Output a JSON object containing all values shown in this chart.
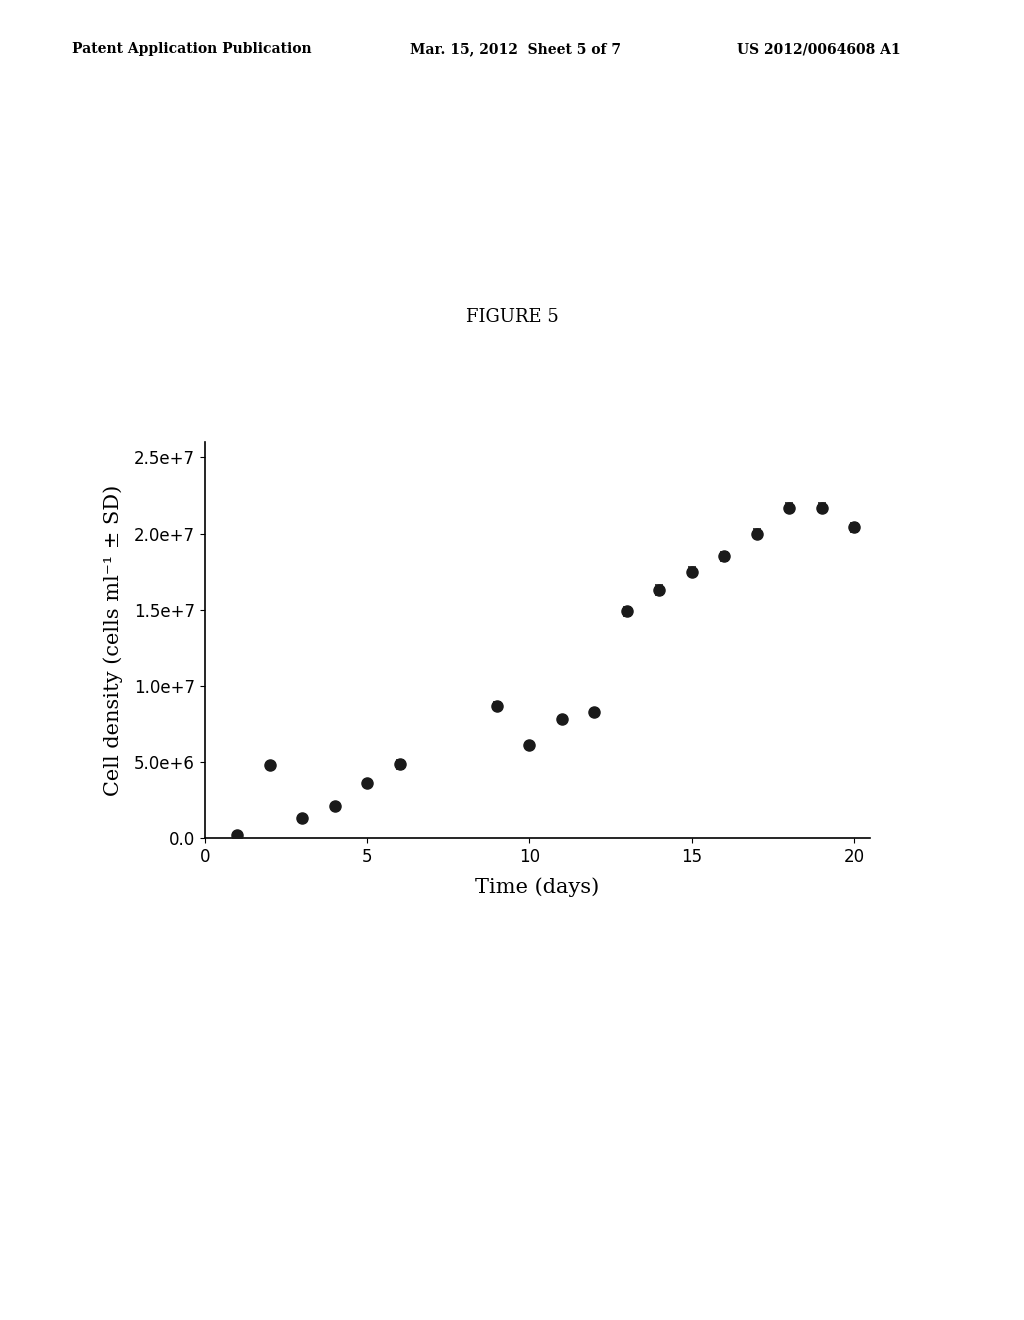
{
  "title": "FIGURE 5",
  "xlabel": "Time (days)",
  "ylabel": "Cell density (cells ml⁻¹ ± SD)",
  "header_left": "Patent Application Publication",
  "header_mid": "Mar. 15, 2012  Sheet 5 of 7",
  "header_right": "US 2012/0064608 A1",
  "x": [
    1,
    2,
    3,
    4,
    5,
    6,
    9,
    10,
    11,
    12,
    13,
    14,
    15,
    16,
    17,
    18,
    19,
    20
  ],
  "y": [
    200000.0,
    4800000.0,
    1300000.0,
    2100000.0,
    3600000.0,
    4850000.0,
    8700000.0,
    6100000.0,
    7800000.0,
    8300000.0,
    14900000.0,
    16300000.0,
    17500000.0,
    18500000.0,
    20000000.0,
    21700000.0,
    21700000.0,
    20400000.0
  ],
  "yerr": [
    100000.0,
    200000.0,
    100000.0,
    150000.0,
    200000.0,
    300000.0,
    250000.0,
    200000.0,
    200000.0,
    200000.0,
    300000.0,
    300000.0,
    300000.0,
    300000.0,
    300000.0,
    300000.0,
    300000.0,
    300000.0
  ],
  "ylim": [
    0,
    26000000.0
  ],
  "xlim": [
    0,
    20.5
  ],
  "yticks": [
    0.0,
    5000000.0,
    10000000.0,
    15000000.0,
    20000000.0,
    25000000.0
  ],
  "xticks": [
    0,
    5,
    10,
    15,
    20
  ],
  "background_color": "#ffffff",
  "marker_color": "#1a1a1a",
  "marker_size": 8,
  "capsize": 3,
  "figure_label_fontsize": 13,
  "axis_label_fontsize": 15,
  "tick_label_fontsize": 12,
  "header_fontsize": 10
}
